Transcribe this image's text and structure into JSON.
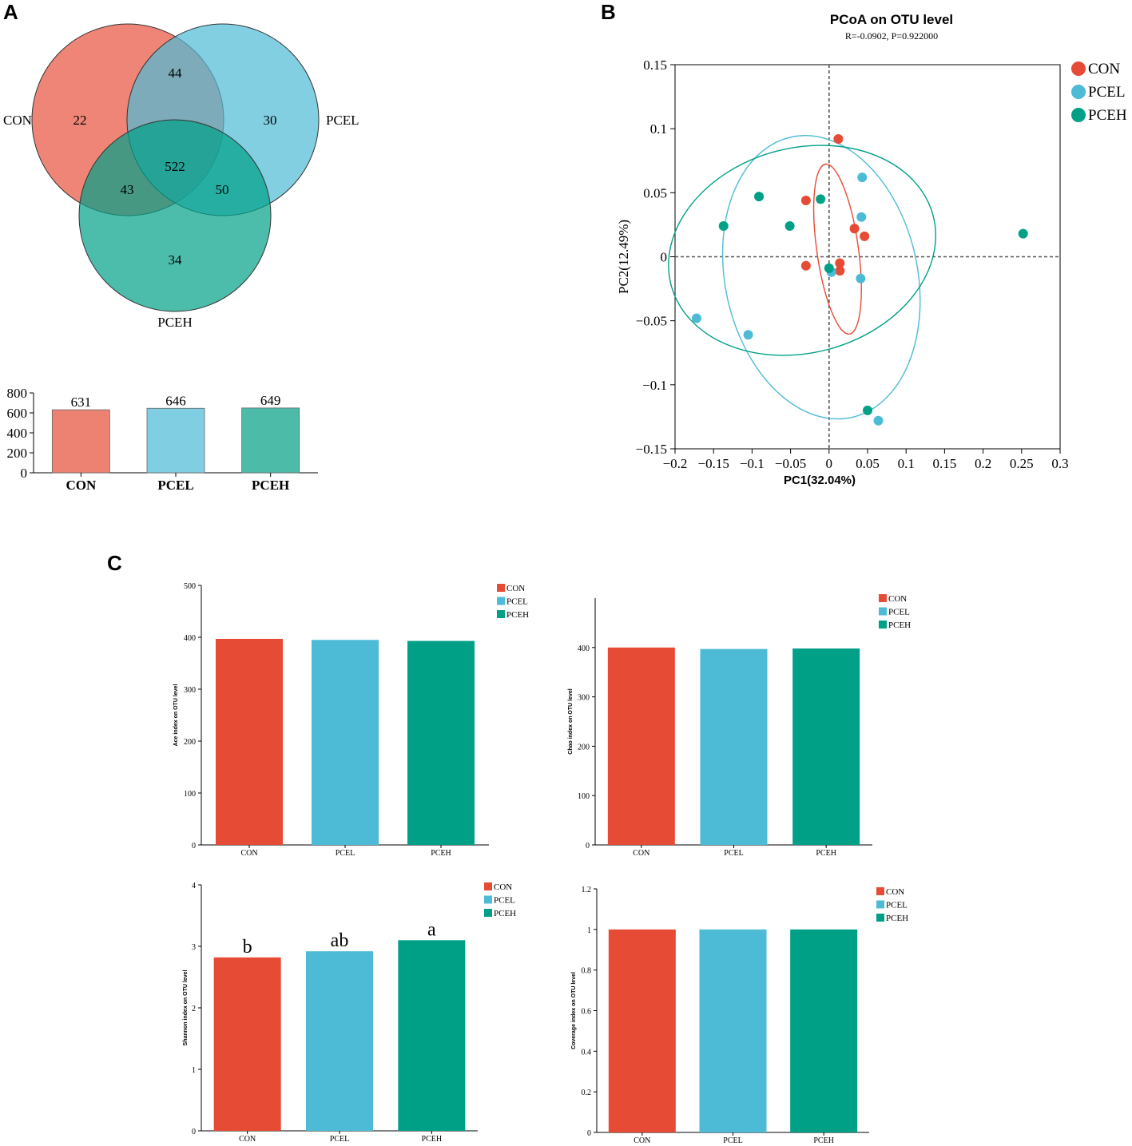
{
  "colors": {
    "con": "#e64b35",
    "pcel": "#4dbbd5",
    "pceh": "#00a087",
    "con_light": "#ee8272",
    "pcel_light": "#80cee1",
    "pceh_light": "#4cbca9"
  },
  "panels": {
    "a": "A",
    "b": "B",
    "c": "C"
  },
  "chart_data": [
    {
      "id": "venn",
      "type": "venn",
      "sets": [
        "CON",
        "PCEL",
        "PCEH"
      ],
      "regions": {
        "con_only": "22",
        "pcel_only": "30",
        "pceh_only": "34",
        "con_pcel": "44",
        "con_pceh": "43",
        "pcel_pceh": "50",
        "all": "522"
      }
    },
    {
      "id": "otu-totals",
      "type": "bar",
      "categories": [
        "CON",
        "PCEL",
        "PCEH"
      ],
      "values": [
        631,
        646,
        649
      ],
      "labels": [
        "631",
        "646",
        "649"
      ],
      "ylim": [
        0,
        800
      ],
      "yticks": [
        "0",
        "200",
        "400",
        "600",
        "800"
      ]
    },
    {
      "id": "pcoa",
      "type": "scatter",
      "title": "PCoA on OTU level",
      "subtitle": "R=-0.0902, P=0.922000",
      "xlabel": "PC1(32.04%)",
      "ylabel": "PC2(12.49%)",
      "xlim": [
        -0.2,
        0.3
      ],
      "ylim": [
        -0.15,
        0.15
      ],
      "xticks": [
        "−0.2",
        "−0.15",
        "−0.1",
        "−0.05",
        "0",
        "0.05",
        "0.1",
        "0.15",
        "0.2",
        "0.25",
        "0.3"
      ],
      "yticks": [
        "−0.15",
        "−0.1",
        "−0.05",
        "0",
        "0.05",
        "0.1",
        "0.15"
      ],
      "legend": [
        "CON",
        "PCEL",
        "PCEH"
      ],
      "series": [
        {
          "name": "CON",
          "points": [
            [
              0.012,
              0.092
            ],
            [
              -0.03,
              0.044
            ],
            [
              0.033,
              0.022
            ],
            [
              0.046,
              0.016
            ],
            [
              -0.03,
              -0.007
            ],
            [
              0.014,
              -0.005
            ],
            [
              0.014,
              -0.011
            ]
          ]
        },
        {
          "name": "PCEL",
          "points": [
            [
              0.043,
              0.062
            ],
            [
              0.042,
              0.031
            ],
            [
              0.003,
              -0.012
            ],
            [
              0.041,
              -0.017
            ],
            [
              -0.172,
              -0.048
            ],
            [
              -0.105,
              -0.061
            ],
            [
              0.064,
              -0.128
            ]
          ]
        },
        {
          "name": "PCEH",
          "points": [
            [
              -0.091,
              0.047
            ],
            [
              -0.011,
              0.045
            ],
            [
              -0.137,
              0.024
            ],
            [
              -0.051,
              0.024
            ],
            [
              0.0,
              -0.009
            ],
            [
              0.252,
              0.018
            ],
            [
              0.05,
              -0.12
            ]
          ]
        }
      ],
      "ellipses": [
        {
          "name": "CON",
          "center": [
            0.011,
            0.006
          ],
          "rx": 0.027,
          "ry": 0.067,
          "angle_deg": -8
        },
        {
          "name": "PCEL",
          "center": [
            -0.01,
            -0.016
          ],
          "rx": 0.125,
          "ry": 0.112,
          "angle_deg": -12
        },
        {
          "name": "PCEH",
          "center": [
            -0.035,
            0.005
          ],
          "rx": 0.176,
          "ry": 0.08,
          "angle_deg": -15
        }
      ]
    },
    {
      "id": "ace",
      "type": "bar",
      "ylabel": "Ace index on OTU level",
      "categories": [
        "CON",
        "PCEL",
        "PCEH"
      ],
      "values": [
        397,
        395,
        393
      ],
      "ylim": [
        0,
        500
      ],
      "yticks": [
        "0",
        "100",
        "200",
        "300",
        "400",
        "500"
      ],
      "legend": [
        "CON",
        "PCEL",
        "PCEH"
      ]
    },
    {
      "id": "chao",
      "type": "bar",
      "ylabel": "Chao index on OTU level",
      "categories": [
        "CON",
        "PCEL",
        "PCEH"
      ],
      "values": [
        400,
        397,
        398
      ],
      "ylim": [
        0,
        500
      ],
      "yticks": [
        "0",
        "100",
        "200",
        "300",
        "400"
      ],
      "legend": [
        "CON",
        "PCEL",
        "PCEH"
      ]
    },
    {
      "id": "shannon",
      "type": "bar",
      "ylabel": "Shannon index on OTU level",
      "categories": [
        "CON",
        "PCEL",
        "PCEH"
      ],
      "values": [
        2.82,
        2.92,
        3.1
      ],
      "significance": [
        "b",
        "ab",
        "a"
      ],
      "ylim": [
        0,
        4
      ],
      "yticks": [
        "0",
        "1",
        "2",
        "3",
        "4"
      ],
      "legend": [
        "CON",
        "PCEL",
        "PCEH"
      ]
    },
    {
      "id": "coverage",
      "type": "bar",
      "ylabel": "Coverage index on OTU level",
      "categories": [
        "CON",
        "PCEL",
        "PCEH"
      ],
      "values": [
        1.0,
        1.0,
        1.0
      ],
      "ylim": [
        0,
        1.2
      ],
      "yticks": [
        "0",
        "0.2",
        "0.4",
        "0.6",
        "0.8",
        "1",
        "1.2"
      ],
      "legend": [
        "CON",
        "PCEL",
        "PCEH"
      ]
    }
  ]
}
